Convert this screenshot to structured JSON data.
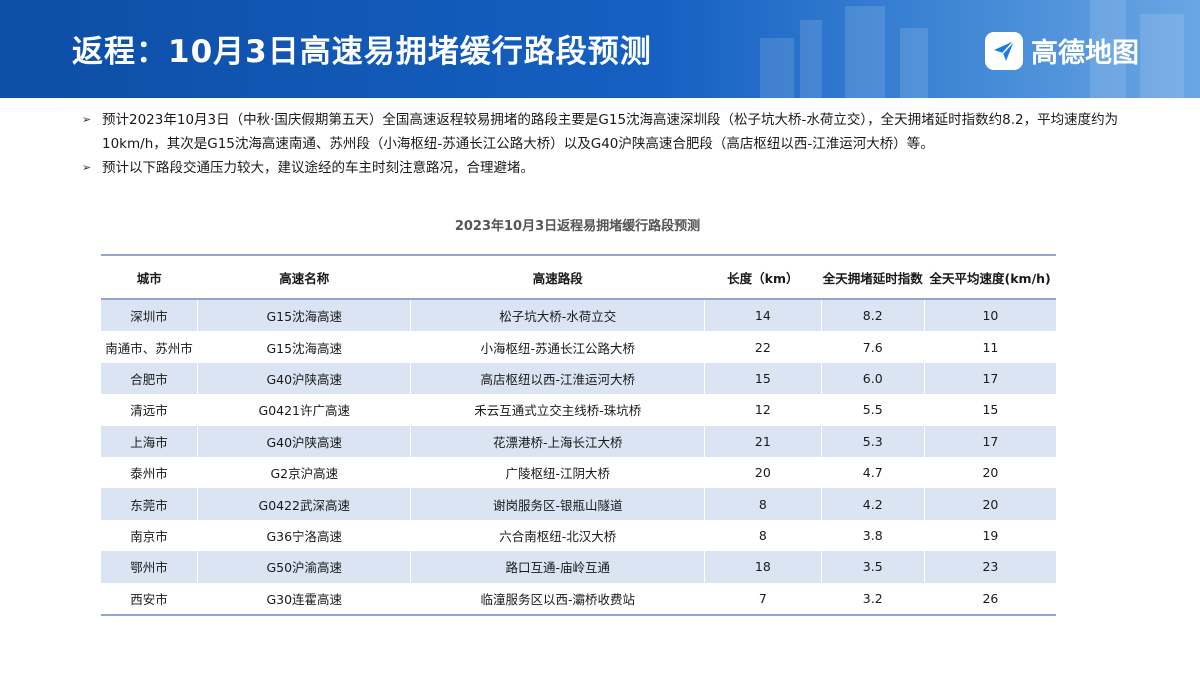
{
  "header": {
    "title": "返程：10月3日高速易拥堵缓行路段预测",
    "logo_text": "高德地图",
    "logo_icon": "paper-plane-arrow-icon"
  },
  "bullets": [
    "预计2023年10月3日（中秋·国庆假期第五天）全国高速返程较易拥堵的路段主要是G15沈海高速深圳段（松子坑大桥-水荷立交），全天拥堵延时指数约8.2，平均速度约为10km/h，其次是G15沈海高速南通、苏州段（小海枢纽-苏通长江公路大桥）以及G40沪陕高速合肥段（高店枢纽以西-江淮运河大桥）等。",
    "预计以下路段交通压力较大，建议途经的车主时刻注意路况，合理避堵。"
  ],
  "table": {
    "title": "2023年10月3日返程易拥堵缓行路段预测",
    "headers": [
      "城市",
      "高速名称",
      "高速路段",
      "长度（km）",
      "全天拥堵延时指数",
      "全天平均速度(km/h)"
    ],
    "rows": [
      [
        "深圳市",
        "G15沈海高速",
        "松子坑大桥-水荷立交",
        "14",
        "8.2",
        "10"
      ],
      [
        "南通市、苏州市",
        "G15沈海高速",
        "小海枢纽-苏通长江公路大桥",
        "22",
        "7.6",
        "11"
      ],
      [
        "合肥市",
        "G40沪陕高速",
        "高店枢纽以西-江淮运河大桥",
        "15",
        "6.0",
        "17"
      ],
      [
        "清远市",
        "G0421许广高速",
        "禾云互通式立交主线桥-珠坑桥",
        "12",
        "5.5",
        "15"
      ],
      [
        "上海市",
        "G40沪陕高速",
        "花漂港桥-上海长江大桥",
        "21",
        "5.3",
        "17"
      ],
      [
        "泰州市",
        "G2京沪高速",
        "广陵枢纽-江阴大桥",
        "20",
        "4.7",
        "20"
      ],
      [
        "东莞市",
        "G0422武深高速",
        "谢岗服务区-银瓶山隧道",
        "8",
        "4.2",
        "20"
      ],
      [
        "南京市",
        "G36宁洛高速",
        "六合南枢纽-北汉大桥",
        "8",
        "3.8",
        "19"
      ],
      [
        "鄂州市",
        "G50沪渝高速",
        "路口互通-庙岭互通",
        "18",
        "3.5",
        "23"
      ],
      [
        "西安市",
        "G30连霍高速",
        "临潼服务区以西-灞桥收费站",
        "7",
        "3.2",
        "26"
      ]
    ]
  },
  "colors": {
    "header_blue": "#1560c2",
    "row_stripe": "#dbe4f3",
    "table_rule": "#8fa6d6"
  }
}
